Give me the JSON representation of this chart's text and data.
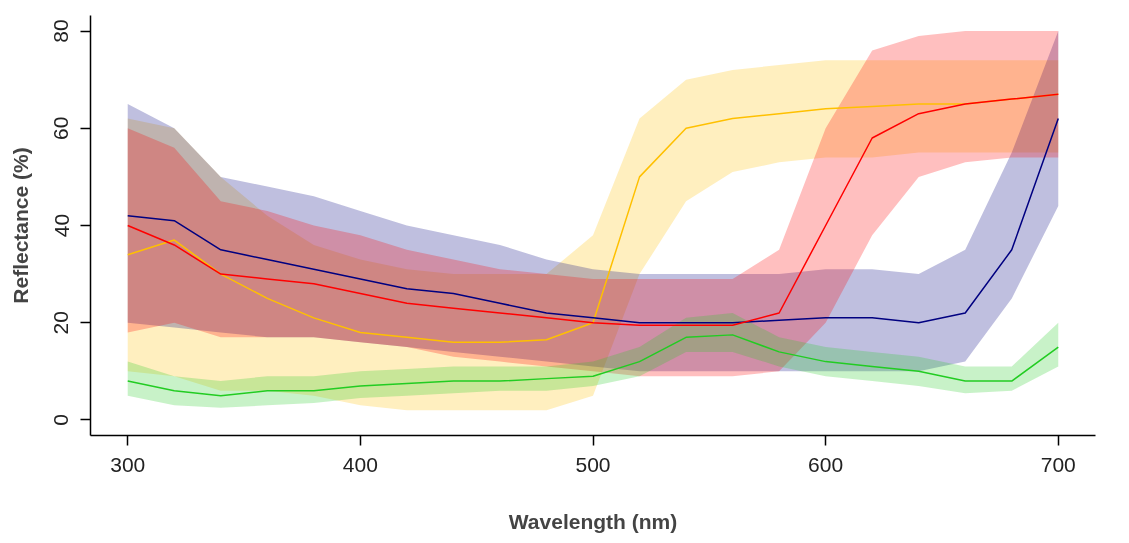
{
  "chart_data": {
    "type": "line",
    "xlabel": "Wavelength (nm)",
    "ylabel": "Reflectance (%)",
    "x": [
      300,
      320,
      340,
      360,
      380,
      400,
      420,
      440,
      460,
      480,
      500,
      520,
      540,
      560,
      580,
      600,
      620,
      640,
      660,
      680,
      700
    ],
    "xlim": [
      284,
      716
    ],
    "ylim": [
      -3.2,
      83.2
    ],
    "xticks": [
      300,
      400,
      500,
      600,
      700
    ],
    "yticks": [
      0,
      20,
      40,
      60,
      80
    ],
    "grid": false,
    "marker": "none",
    "line_style": "solid",
    "series": [
      {
        "color": "#ffc000",
        "values": [
          34,
          37,
          30,
          25,
          21,
          18,
          17,
          16,
          16,
          16.5,
          20,
          50,
          60,
          62,
          63,
          64,
          64.5,
          65,
          65,
          66,
          67
        ],
        "lower": [
          10,
          9,
          6,
          6,
          5,
          3,
          2,
          2,
          2,
          2,
          5,
          30,
          45,
          51,
          53,
          54,
          54,
          55,
          55,
          55,
          55
        ],
        "upper": [
          62,
          60,
          50,
          42,
          36,
          33,
          31,
          30,
          30,
          30,
          38,
          62,
          70,
          72,
          73,
          74,
          74,
          74,
          74,
          74,
          74
        ]
      },
      {
        "color": "#000080",
        "values": [
          42,
          41,
          35,
          33,
          31,
          29,
          27,
          26,
          24,
          22,
          21,
          20,
          20,
          20,
          20.5,
          21,
          21,
          20,
          22,
          35,
          62
        ],
        "lower": [
          20,
          19,
          18,
          17,
          17,
          16,
          15,
          14,
          13,
          12,
          11,
          10,
          10,
          10,
          10,
          10,
          10,
          10,
          12,
          25,
          44
        ],
        "upper": [
          65,
          60,
          50,
          48,
          46,
          43,
          40,
          38,
          36,
          33,
          31,
          30,
          30,
          30,
          30,
          31,
          31,
          30,
          35,
          55,
          80
        ]
      },
      {
        "color": "#ff0000",
        "values": [
          40,
          36,
          30,
          29,
          28,
          26,
          24,
          23,
          22,
          21,
          20,
          19.5,
          19.5,
          19.5,
          22,
          40,
          58,
          63,
          65,
          66,
          67
        ],
        "lower": [
          18,
          20,
          17,
          17,
          17,
          16,
          15,
          13,
          12,
          11,
          10,
          9,
          9,
          9,
          10,
          20,
          38,
          50,
          53,
          54,
          54
        ],
        "upper": [
          60,
          56,
          45,
          43,
          40,
          38,
          35,
          33,
          31,
          30,
          29,
          29,
          29,
          29,
          35,
          60,
          76,
          79,
          80,
          80,
          80
        ]
      },
      {
        "color": "#22cc22",
        "values": [
          8,
          6,
          5,
          6,
          6,
          7,
          7.5,
          8,
          8,
          8.5,
          9,
          12,
          17,
          17.5,
          14,
          12,
          11,
          10,
          8,
          8,
          15
        ],
        "lower": [
          5,
          3,
          2.5,
          3,
          3.5,
          4.5,
          5,
          5.5,
          6,
          6,
          7,
          9,
          14,
          14,
          11,
          9,
          8,
          7,
          5.5,
          6,
          11
        ],
        "upper": [
          12,
          9,
          8,
          9,
          9,
          10,
          10.5,
          11,
          11,
          11,
          12,
          15,
          21,
          22,
          17,
          15,
          14,
          13,
          11,
          11,
          20
        ]
      }
    ]
  }
}
